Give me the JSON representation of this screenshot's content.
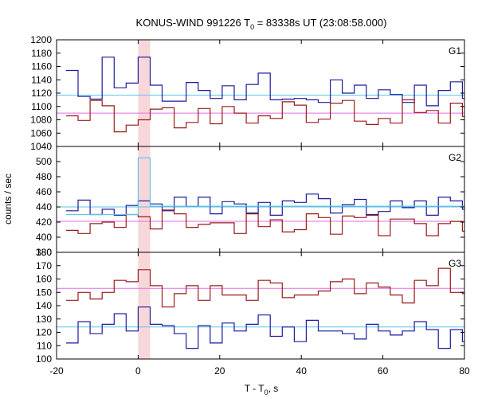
{
  "chart_data": {
    "type": "line",
    "title_main": "KONUS-WIND 991226 T",
    "title_sub": "0",
    "title_rest": " = 83338s UT (23:08:58.000)",
    "xlabel_main": "T - T",
    "xlabel_sub": "0",
    "xlabel_rest": ", s",
    "ylabel": "counts / sec",
    "xlim": [
      -20,
      80
    ],
    "x_ticks": [
      -20,
      0,
      20,
      40,
      60,
      80
    ],
    "x_tick_labels": [
      "-20",
      "0",
      "20",
      "40",
      "60",
      "80"
    ],
    "highlight_interval": [
      0,
      2.944
    ],
    "colors": {
      "source": "#1b1b9e",
      "background_source": "#9b1b1b",
      "fit_source": "#5ec6e8",
      "fit_background": "#e36ee3",
      "highlight": "#f7d7d9",
      "dashed": "#1b1b9e",
      "frame": "#000000"
    },
    "bin_edges": [
      -17.664,
      -14.72,
      -11.776,
      -8.832,
      -5.888,
      -2.944,
      0.0,
      2.944,
      5.888,
      8.832,
      11.776,
      14.72,
      17.664,
      20.608,
      23.552,
      26.496,
      29.44,
      32.384,
      35.328,
      38.272,
      41.216,
      44.16,
      47.104,
      50.048,
      52.992,
      55.936,
      58.88,
      61.824,
      64.768,
      67.712,
      70.656,
      73.6,
      76.544,
      79.488,
      82.432
    ],
    "panels": [
      {
        "label": "G1",
        "ylim": [
          1040,
          1200
        ],
        "y_ticks": [
          1040,
          1060,
          1080,
          1100,
          1120,
          1140,
          1160,
          1180,
          1200
        ],
        "y_tick_labels": [
          "1040",
          "1060",
          "1080",
          "1100",
          "1120",
          "1140",
          "1160",
          "1180",
          "1200"
        ],
        "fit_source": 1117,
        "fit_background": 1090,
        "series": [
          {
            "values": [
              1154,
              1115,
              1111,
              1174,
              1128,
              1135,
              1174,
              1132,
              1108,
              1108,
              1136,
              1124,
              1112,
              1131,
              1110,
              1133,
              1150,
              1110,
              1111,
              1112,
              1110,
              1106,
              1140,
              1120,
              1132,
              1112,
              1125,
              1118,
              1106,
              1132,
              1101,
              1124,
              1137,
              1112
            ]
          },
          {
            "values": [
              1086,
              1079,
              1109,
              1101,
              1062,
              1072,
              1080,
              1096,
              1098,
              1068,
              1076,
              1097,
              1074,
              1100,
              1090,
              1075,
              1086,
              1082,
              1107,
              1102,
              1076,
              1081,
              1105,
              1109,
              1078,
              1073,
              1082,
              1075,
              1110,
              1091,
              1094,
              1075,
              1105,
              1085
            ]
          }
        ]
      },
      {
        "label": "G2",
        "ylim": [
          380,
          520
        ],
        "y_ticks": [
          380,
          400,
          420,
          440,
          460,
          480,
          500
        ],
        "y_tick_labels": [
          "380",
          "400",
          "420",
          "440",
          "460",
          "480",
          "500"
        ],
        "fit_source": 440,
        "fit_background": 421,
        "dashed_level": 441,
        "series": [
          {
            "values": [
              435,
              449,
              430,
              437,
              429,
              442,
              448,
              444,
              435,
              453,
              441,
              453,
              431,
              447,
              444,
              432,
              446,
              429,
              448,
              446,
              457,
              451,
              432,
              443,
              450,
              430,
              434,
              448,
              439,
              448,
              429,
              453,
              448,
              437
            ]
          },
          {
            "values": [
              409,
              405,
              418,
              420,
              413,
              430,
              427,
              411,
              436,
              431,
              413,
              417,
              419,
              419,
              405,
              431,
              414,
              423,
              407,
              410,
              431,
              426,
              404,
              428,
              426,
              429,
              402,
              424,
              424,
              418,
              402,
              418,
              421,
              408
            ]
          },
          {
            "values": [
              430,
              430,
              430,
              430,
              430,
              430,
              505,
              441,
              441,
              441,
              441,
              441,
              441,
              441,
              441,
              441,
              441,
              441,
              441,
              441,
              441,
              441,
              441,
              441,
              441,
              441,
              441,
              441,
              441,
              441,
              441,
              441,
              441,
              441
            ]
          }
        ]
      },
      {
        "label": "G3",
        "ylim": [
          100,
          180
        ],
        "y_ticks": [
          100,
          110,
          120,
          130,
          140,
          150,
          160,
          170,
          180
        ],
        "y_tick_labels": [
          "100",
          "110",
          "120",
          "130",
          "140",
          "150",
          "160",
          "170",
          "180"
        ],
        "fit_source": 124,
        "fit_background": 153,
        "series": [
          {
            "values": [
              112,
              128,
              119,
              126,
              134,
              121,
              139,
              126,
              125,
              119,
              108,
              125,
              112,
              127,
              121,
              126,
              133,
              117,
              124,
              113,
              129,
              121,
              121,
              119,
              115,
              126,
              121,
              118,
              121,
              128,
              122,
              108,
              122,
              113
            ]
          },
          {
            "values": [
              144,
              150,
              145,
              150,
              159,
              158,
              167,
              155,
              139,
              149,
              155,
              144,
              155,
              148,
              148,
              144,
              159,
              157,
              146,
              148,
              148,
              151,
              158,
              160,
              149,
              157,
              154,
              148,
              142,
              159,
              155,
              168,
              150,
              149
            ]
          }
        ]
      }
    ]
  }
}
